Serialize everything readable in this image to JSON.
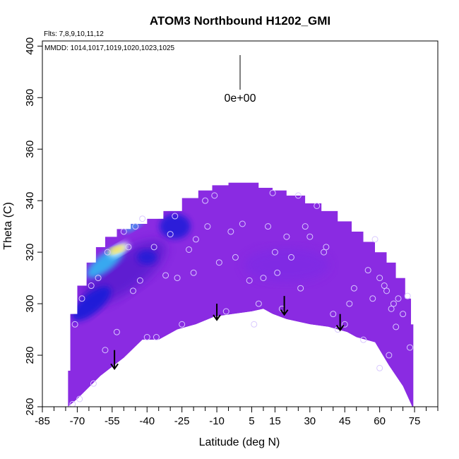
{
  "chart_data": {
    "type": "heatmap",
    "title": "ATOM3 Northbound H1202_GMI",
    "flights_label": "Flts: 7,8,9,10,11,12",
    "dates_label": "MMDD: 1014,1017,1019,1020,1023,1025",
    "xlabel": "Latitude (deg N)",
    "ylabel": "Theta (C)",
    "xlim": [
      -85,
      85
    ],
    "ylim": [
      260,
      402
    ],
    "x_ticks": [
      -85,
      -70,
      -55,
      -40,
      -25,
      -10,
      5,
      15,
      30,
      45,
      60,
      75
    ],
    "x_minor_ticks": [
      -80,
      -75,
      -65,
      -60,
      -50,
      -45,
      -35,
      -30,
      -20,
      -15,
      -5,
      0,
      10,
      20,
      25,
      35,
      40,
      50,
      55,
      65,
      70,
      80,
      85
    ],
    "y_ticks": [
      260,
      280,
      300,
      320,
      340,
      360,
      380,
      400
    ],
    "scale_annotation": "0e+00",
    "colors": {
      "field": "#8a2be2",
      "field_dark": "#5a1fd0",
      "deep_blue": "#1a1ad8",
      "sky": "#39a8f0",
      "pale": "#d8f4ff",
      "yellow": "#ffe23a",
      "marker": "#d8c8ff"
    },
    "field_top": [
      [
        -74,
        274
      ],
      [
        -73,
        296
      ],
      [
        -70,
        307
      ],
      [
        -66,
        316
      ],
      [
        -62,
        322
      ],
      [
        -58,
        326
      ],
      [
        -53,
        329
      ],
      [
        -47,
        331
      ],
      [
        -40,
        333
      ],
      [
        -33,
        336
      ],
      [
        -25,
        341
      ],
      [
        -18,
        344
      ],
      [
        -12,
        346
      ],
      [
        -5,
        347
      ],
      [
        2,
        347
      ],
      [
        8,
        345
      ],
      [
        14,
        344
      ],
      [
        20,
        342
      ],
      [
        28,
        339
      ],
      [
        35,
        336
      ],
      [
        42,
        332
      ],
      [
        48,
        328
      ],
      [
        53,
        324
      ],
      [
        58,
        320
      ],
      [
        63,
        316
      ],
      [
        67,
        310
      ],
      [
        71,
        302
      ],
      [
        73.5,
        292
      ],
      [
        74.5,
        284
      ]
    ],
    "field_bottom": [
      [
        -74,
        260
      ],
      [
        -70,
        263
      ],
      [
        -60,
        272
      ],
      [
        -50,
        279
      ],
      [
        -42,
        286
      ],
      [
        -35,
        286
      ],
      [
        -27,
        290
      ],
      [
        -19,
        292
      ],
      [
        -11,
        295
      ],
      [
        -3,
        296
      ],
      [
        5,
        297
      ],
      [
        10,
        298
      ],
      [
        14,
        296
      ],
      [
        20,
        294
      ],
      [
        30,
        292
      ],
      [
        38,
        291
      ],
      [
        46,
        289
      ],
      [
        50,
        287
      ],
      [
        58,
        285
      ],
      [
        64,
        276
      ],
      [
        70,
        268
      ],
      [
        74,
        260
      ]
    ],
    "samples": [
      [
        -72,
        261
      ],
      [
        -69,
        263
      ],
      [
        -63,
        269
      ],
      [
        -58,
        282
      ],
      [
        -53,
        289
      ],
      [
        -46,
        305
      ],
      [
        -43,
        309
      ],
      [
        -40,
        287
      ],
      [
        -36,
        287
      ],
      [
        -32,
        311
      ],
      [
        -27,
        310
      ],
      [
        -25,
        292
      ],
      [
        -22,
        321
      ],
      [
        -19,
        325
      ],
      [
        -15,
        340
      ],
      [
        -11,
        342
      ],
      [
        -9,
        316
      ],
      [
        -6,
        297
      ],
      [
        -4,
        328
      ],
      [
        -2,
        318
      ],
      [
        1,
        331
      ],
      [
        8,
        300
      ],
      [
        10,
        310
      ],
      [
        12,
        330
      ],
      [
        14,
        343
      ],
      [
        16,
        312
      ],
      [
        18,
        298
      ],
      [
        20,
        326
      ],
      [
        22,
        318
      ],
      [
        25,
        342
      ],
      [
        28,
        330
      ],
      [
        30,
        326
      ],
      [
        33,
        338
      ],
      [
        36,
        320
      ],
      [
        40,
        296
      ],
      [
        42,
        290
      ],
      [
        45,
        292
      ],
      [
        49,
        306
      ],
      [
        53,
        286
      ],
      [
        55,
        313
      ],
      [
        57,
        302
      ],
      [
        58,
        325
      ],
      [
        60,
        310
      ],
      [
        62,
        307
      ],
      [
        63,
        305
      ],
      [
        65,
        298
      ],
      [
        66,
        300
      ],
      [
        67,
        291
      ],
      [
        68,
        302
      ],
      [
        70,
        296
      ],
      [
        72,
        303
      ],
      [
        73,
        283
      ],
      [
        -71,
        292
      ],
      [
        -68,
        302
      ],
      [
        -64,
        307
      ],
      [
        -61,
        310
      ],
      [
        -57,
        320
      ],
      [
        -50,
        328
      ],
      [
        -48,
        322
      ],
      [
        -45,
        330
      ],
      [
        -42,
        333
      ],
      [
        -37,
        322
      ],
      [
        -30,
        327
      ],
      [
        -28,
        334
      ],
      [
        -20,
        312
      ],
      [
        -14,
        330
      ],
      [
        4,
        309
      ],
      [
        15,
        320
      ],
      [
        26,
        306
      ],
      [
        37,
        322
      ],
      [
        47,
        300
      ],
      [
        60,
        275
      ],
      [
        64,
        280
      ],
      [
        6,
        292
      ]
    ],
    "transport_arrows": [
      [
        -54,
        282,
        275
      ],
      [
        -10,
        300,
        294
      ],
      [
        19,
        303,
        296
      ],
      [
        43,
        296,
        290
      ]
    ]
  }
}
